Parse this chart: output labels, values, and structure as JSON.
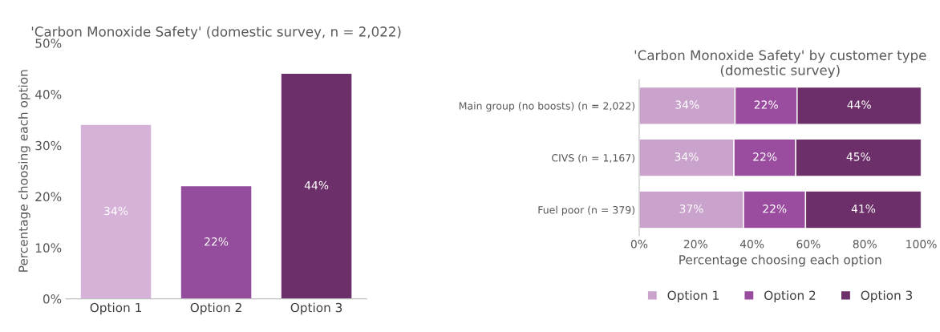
{
  "chart_data": [
    {
      "type": "bar",
      "title": "'Carbon Monoxide Safety' (domestic survey, n = 2,022)",
      "ylabel": "Percentage choosing each option",
      "categories": [
        "Option 1",
        "Option 2",
        "Option 3"
      ],
      "values": [
        34,
        22,
        44
      ],
      "colors": [
        "#d7b2d8",
        "#944d9c",
        "#6c2f69"
      ],
      "value_labels": [
        "34%",
        "22%",
        "44%"
      ],
      "ylim": [
        0,
        50
      ],
      "yticks": [
        {
          "value": 0,
          "label": "0%"
        },
        {
          "value": 10,
          "label": "10%"
        },
        {
          "value": 20,
          "label": "20%"
        },
        {
          "value": 30,
          "label": "30%"
        },
        {
          "value": 40,
          "label": "40%"
        },
        {
          "value": 50,
          "label": "50%"
        }
      ],
      "grid": false,
      "legend": false
    },
    {
      "type": "bar",
      "orientation": "horizontal",
      "stacked": true,
      "title": "'Carbon Monoxide Safety' by customer type (domestic survey)",
      "xlabel": "Percentage choosing each option",
      "categories": [
        "Main group (no boosts) (n = 2,022)",
        "CIVS (n = 1,167)",
        "Fuel poor (n = 379)"
      ],
      "series": [
        {
          "name": "Option 1",
          "color": "#c9a3cb",
          "values": [
            34,
            33.6,
            37
          ],
          "value_labels": [
            "34%",
            "34%",
            "37%"
          ]
        },
        {
          "name": "Option 2",
          "color": "#9a4c9f",
          "values": [
            22,
            21.9,
            22
          ],
          "value_labels": [
            "22%",
            "22%",
            "22%"
          ]
        },
        {
          "name": "Option 3",
          "color": "#6c2f69",
          "values": [
            44,
            44.5,
            41
          ],
          "value_labels": [
            "44%",
            "45%",
            "41%"
          ]
        }
      ],
      "xlim": [
        0,
        100
      ],
      "xticks": [
        {
          "value": 0,
          "label": "0%"
        },
        {
          "value": 20,
          "label": "20%"
        },
        {
          "value": 40,
          "label": "40%"
        },
        {
          "value": 60,
          "label": "60%"
        },
        {
          "value": 80,
          "label": "80%"
        },
        {
          "value": 100,
          "label": "100%"
        }
      ],
      "grid": false,
      "legend": "bottom"
    }
  ]
}
